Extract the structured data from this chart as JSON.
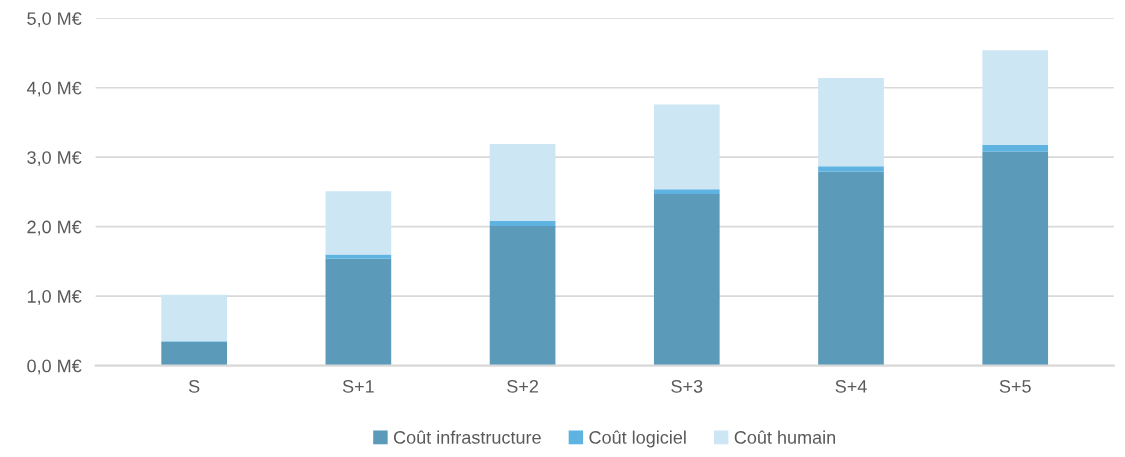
{
  "chart_data": {
    "type": "bar",
    "stacked": true,
    "categories": [
      "S",
      "S+1",
      "S+2",
      "S+3",
      "S+4",
      "S+5"
    ],
    "series": [
      {
        "name": "Coût infrastructure",
        "color": "#5b9ab8",
        "values": [
          0.34,
          1.54,
          2.01,
          2.47,
          2.79,
          3.08
        ]
      },
      {
        "name": "Coût logiciel",
        "color": "#5fb3e0",
        "values": [
          0.01,
          0.06,
          0.07,
          0.07,
          0.08,
          0.1
        ]
      },
      {
        "name": "Coût humain",
        "color": "#cce6f4",
        "values": [
          0.67,
          0.91,
          1.11,
          1.22,
          1.27,
          1.36
        ]
      }
    ],
    "ylim": [
      0,
      5
    ],
    "yticks": [
      {
        "value": 0,
        "label": "0,0 M€"
      },
      {
        "value": 1,
        "label": "1,0 M€"
      },
      {
        "value": 2,
        "label": "2,0 M€"
      },
      {
        "value": 3,
        "label": "3,0 M€"
      },
      {
        "value": 4,
        "label": "4,0 M€"
      },
      {
        "value": 5,
        "label": "5,0 M€"
      }
    ],
    "grid": "y",
    "legend": "bottom"
  }
}
